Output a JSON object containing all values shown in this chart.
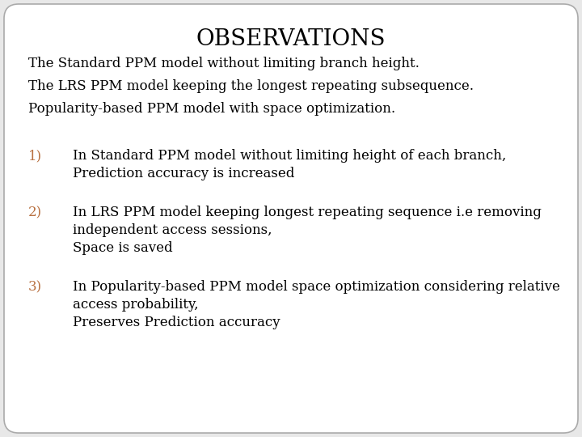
{
  "title": "OBSERVATIONS",
  "background_color": "#e8e8e8",
  "slide_bg": "#ffffff",
  "title_color": "#000000",
  "bullet_color": "#000000",
  "number_color": "#b87040",
  "intro_lines": [
    "The Standard PPM model without limiting branch height.",
    "The LRS PPM model keeping the longest repeating subsequence.",
    "Popularity-based PPM model with space optimization."
  ],
  "numbered_items": [
    {
      "number": "1)",
      "lines": [
        "In Standard PPM model without limiting height of each branch,",
        "Prediction accuracy is increased"
      ]
    },
    {
      "number": "2)",
      "lines": [
        "In LRS PPM model keeping longest repeating sequence i.e removing",
        "independent access sessions,",
        "Space is saved"
      ]
    },
    {
      "number": "3)",
      "lines": [
        "In Popularity-based PPM model space optimization considering relative",
        "access probability,",
        "Preserves Prediction accuracy"
      ]
    }
  ],
  "title_fontsize": 20,
  "intro_fontsize": 12,
  "body_fontsize": 12,
  "number_fontsize": 12,
  "font_family": "serif"
}
